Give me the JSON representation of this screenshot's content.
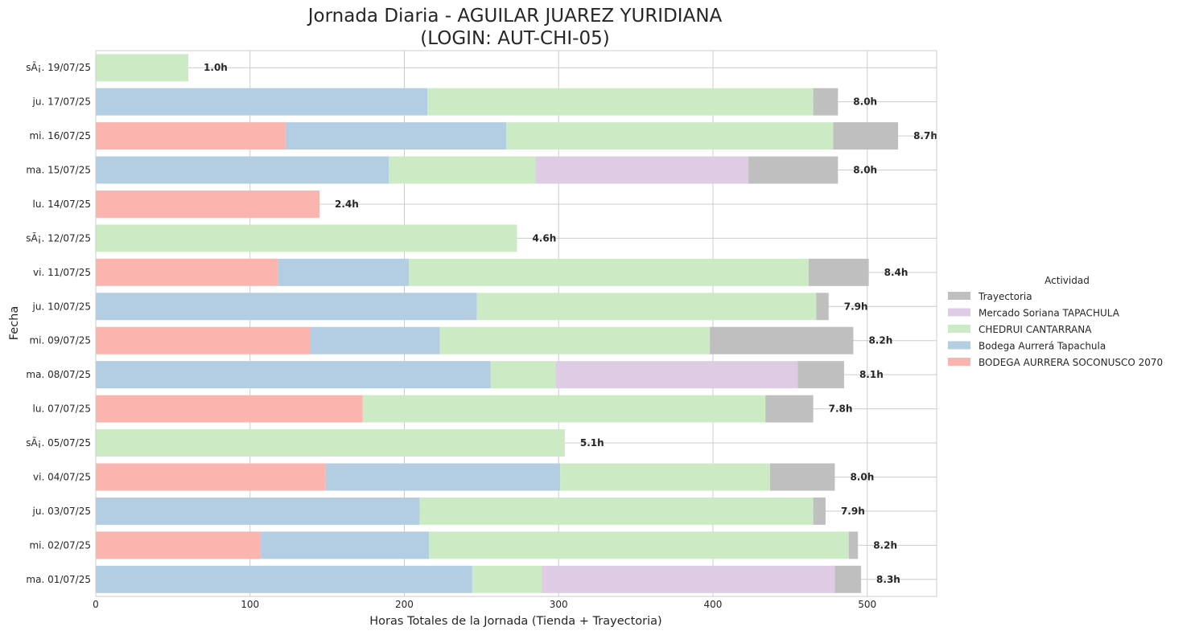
{
  "chart_data": {
    "type": "bar",
    "orientation": "horizontal",
    "stacked": true,
    "title": "Jornada Diaria - AGUILAR JUAREZ YURIDIANA",
    "subtitle": "(LOGIN: AUT-CHI-05)",
    "xlabel": "Horas Totales de la Jornada (Tienda + Trayectoria)",
    "ylabel": "Fecha",
    "xlim": [
      0,
      545
    ],
    "xticks": [
      0,
      100,
      200,
      300,
      400,
      500
    ],
    "grid": true,
    "legend_title": "Actividad",
    "legend_position": "right",
    "categories": [
      "ma. 01/07/25",
      "mi. 02/07/25",
      "ju. 03/07/25",
      "vi. 04/07/25",
      "sÃ¡. 05/07/25",
      "lu. 07/07/25",
      "ma. 08/07/25",
      "mi. 09/07/25",
      "ju. 10/07/25",
      "vi. 11/07/25",
      "sÃ¡. 12/07/25",
      "lu. 14/07/25",
      "ma. 15/07/25",
      "mi. 16/07/25",
      "ju. 17/07/25",
      "sÃ¡. 19/07/25"
    ],
    "series": [
      {
        "name": "BODEGA AURRERA SOCONUSCO 2070",
        "color": "#fbb4ae",
        "values": [
          0,
          107,
          0,
          149,
          0,
          173,
          0,
          139,
          0,
          118,
          0,
          145,
          0,
          123,
          0,
          0
        ]
      },
      {
        "name": "Bodega Aurrerá Tapachula",
        "color": "#b3cde3",
        "values": [
          244,
          109,
          210,
          152,
          0,
          0,
          256,
          84,
          247,
          85,
          0,
          0,
          190,
          143,
          215,
          0
        ]
      },
      {
        "name": "CHEDRUI CANTARRANA",
        "color": "#ccebc5",
        "values": [
          45,
          272,
          255,
          136,
          304,
          261,
          42,
          175,
          220,
          259,
          273,
          0,
          95,
          212,
          250,
          60
        ]
      },
      {
        "name": "Mercado Soriana TAPACHULA",
        "color": "#decbe4",
        "values": [
          190,
          0,
          0,
          0,
          0,
          0,
          157,
          0,
          0,
          0,
          0,
          0,
          138,
          0,
          0,
          0
        ]
      },
      {
        "name": "Trayectoria",
        "color": "#bfbfbf",
        "values": [
          17,
          6,
          8,
          42,
          0,
          31,
          30,
          93,
          8,
          39,
          0,
          0,
          58,
          42,
          16,
          0
        ]
      }
    ],
    "totals_labels": [
      "8.3h",
      "8.2h",
      "7.9h",
      "8.0h",
      "5.1h",
      "7.8h",
      "8.1h",
      "8.2h",
      "7.9h",
      "8.4h",
      "4.6h",
      "2.4h",
      "8.0h",
      "8.7h",
      "8.0h",
      "1.0h"
    ]
  }
}
